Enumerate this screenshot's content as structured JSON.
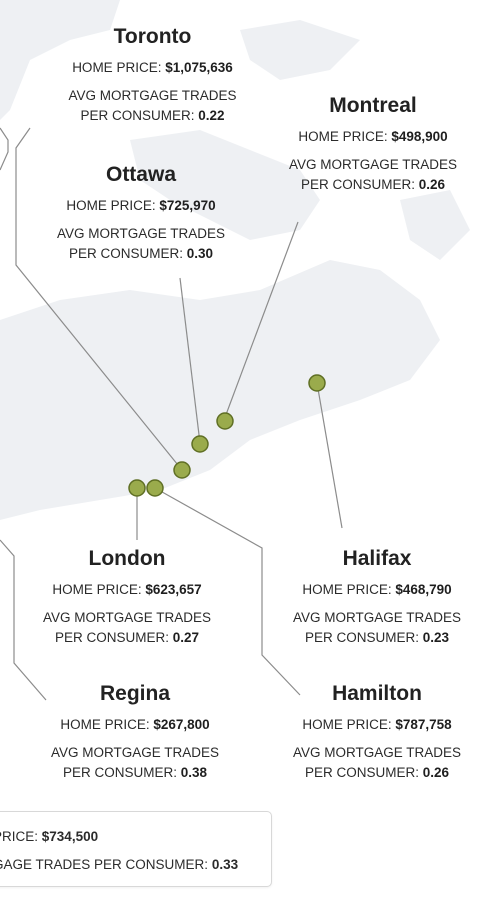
{
  "colors": {
    "marker_fill": "#9aab4c",
    "marker_stroke": "#5f6f24",
    "connector": "#8c8c8c",
    "map_land": "#eef0f3"
  },
  "labels": {
    "home_price": "HOME PRICE:",
    "avg_line1": "AVG MORTGAGE TRADES",
    "avg_line2": "PER CONSUMER:"
  },
  "cities": {
    "toronto": {
      "name": "Toronto",
      "home_price": "$1,075,636",
      "trades": "0.22"
    },
    "montreal": {
      "name": "Montreal",
      "home_price": "$498,900",
      "trades": "0.26"
    },
    "ottawa": {
      "name": "Ottawa",
      "home_price": "$725,970",
      "trades": "0.30"
    },
    "london": {
      "name": "London",
      "home_price": "$623,657",
      "trades": "0.27"
    },
    "halifax": {
      "name": "Halifax",
      "home_price": "$468,790",
      "trades": "0.23"
    },
    "regina": {
      "name": "Regina",
      "home_price": "$267,800",
      "trades": "0.38"
    },
    "hamilton": {
      "name": "Hamilton",
      "home_price": "$787,758",
      "trades": "0.26"
    }
  },
  "partial_box": {
    "line1_label": "PRICE:",
    "line1_value": "$734,500",
    "line2_label": "GAGE TRADES PER CONSUMER:",
    "line2_value": "0.33"
  }
}
